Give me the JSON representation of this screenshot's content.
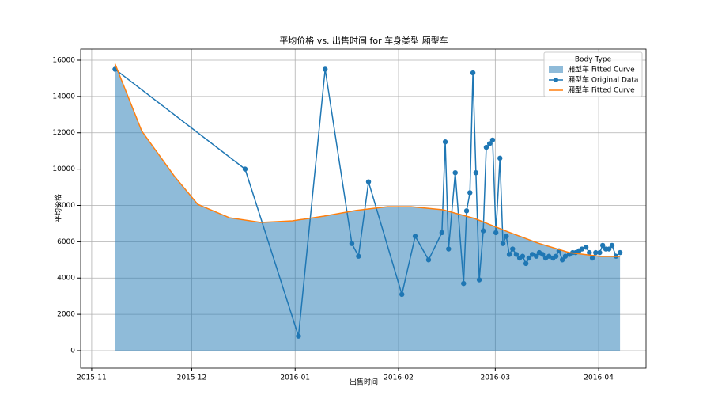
{
  "chart_data": {
    "type": "line",
    "title": "平均价格 vs. 出售时间 for 车身类型 厢型车",
    "x_label": "出售时间",
    "y_label": "平均价格",
    "xlim": [
      -3.3,
      166.2
    ],
    "ylim": [
      -960,
      16610
    ],
    "xticks": [
      {
        "value": 0,
        "label": "2015-11"
      },
      {
        "value": 30,
        "label": "2015-12"
      },
      {
        "value": 61,
        "label": "2016-01"
      },
      {
        "value": 92,
        "label": "2016-02"
      },
      {
        "value": 121,
        "label": "2016-03"
      },
      {
        "value": 152,
        "label": "2016-04"
      }
    ],
    "yticks": [
      0,
      2000,
      4000,
      6000,
      8000,
      10000,
      12000,
      14000,
      16000
    ],
    "grid": true,
    "legend": {
      "title": "Body Type",
      "loc": "upper right"
    },
    "series": [
      {
        "name": "厢型车 Fitted Curve",
        "type": "area",
        "color": "#1f77b4",
        "opacity": 0.5,
        "x": [
          7,
          15,
          24.7,
          31.8,
          41.3,
          50.7,
          60.2,
          69.7,
          79.2,
          88.7,
          95.8,
          105.3,
          114.8,
          124.3,
          133.7,
          143.2,
          152.7,
          158.4
        ],
        "values": [
          15800,
          12100,
          9630,
          8060,
          7320,
          7060,
          7150,
          7410,
          7720,
          7930,
          7930,
          7760,
          7280,
          6580,
          5930,
          5400,
          5190,
          5190
        ]
      },
      {
        "name": "厢型车 Original Data",
        "type": "line",
        "marker": "circle",
        "color": "#1f77b4",
        "x": [
          7,
          46,
          62,
          70,
          78,
          80,
          83,
          93,
          97,
          101,
          105,
          106,
          107,
          109,
          111.5,
          112.4,
          113.4,
          114.3,
          115.2,
          116.2,
          117.4,
          118.3,
          119.3,
          120.2,
          121.2,
          122.4,
          123.3,
          124.3,
          125.2,
          126.2,
          127.3,
          128.3,
          129.2,
          130.2,
          131.1,
          132.1,
          133.3,
          134.2,
          135.2,
          136.1,
          137.1,
          138.3,
          139.2,
          140.1,
          141.1,
          142,
          143.2,
          144.2,
          145.1,
          146.1,
          147,
          148.2,
          149.2,
          150.1,
          151.1,
          152.3,
          153.2,
          154.1,
          155.1,
          156,
          157.2,
          158.4
        ],
        "values": [
          15500,
          10000,
          800,
          15500,
          5900,
          5200,
          9300,
          3100,
          6300,
          5000,
          6500,
          11500,
          5600,
          9800,
          3700,
          7700,
          8700,
          15300,
          9800,
          3900,
          6600,
          11200,
          11400,
          11600,
          6500,
          10600,
          5900,
          6300,
          5300,
          5600,
          5300,
          5100,
          5200,
          4800,
          5100,
          5300,
          5200,
          5400,
          5300,
          5100,
          5200,
          5100,
          5200,
          5500,
          5000,
          5200,
          5300,
          5400,
          5400,
          5500,
          5600,
          5700,
          5400,
          5100,
          5400,
          5400,
          5800,
          5600,
          5600,
          5800,
          5200,
          5400
        ]
      },
      {
        "name": "厢型车 Fitted Curve",
        "type": "line",
        "color": "#ff7f0e",
        "x": [
          7,
          15,
          24.7,
          31.8,
          41.3,
          50.7,
          60.2,
          69.7,
          79.2,
          88.7,
          95.8,
          105.3,
          114.8,
          124.3,
          133.7,
          143.2,
          152.7,
          158.4
        ],
        "values": [
          15800,
          12100,
          9630,
          8060,
          7320,
          7060,
          7150,
          7410,
          7720,
          7930,
          7930,
          7760,
          7280,
          6580,
          5930,
          5400,
          5190,
          5190
        ]
      }
    ]
  }
}
